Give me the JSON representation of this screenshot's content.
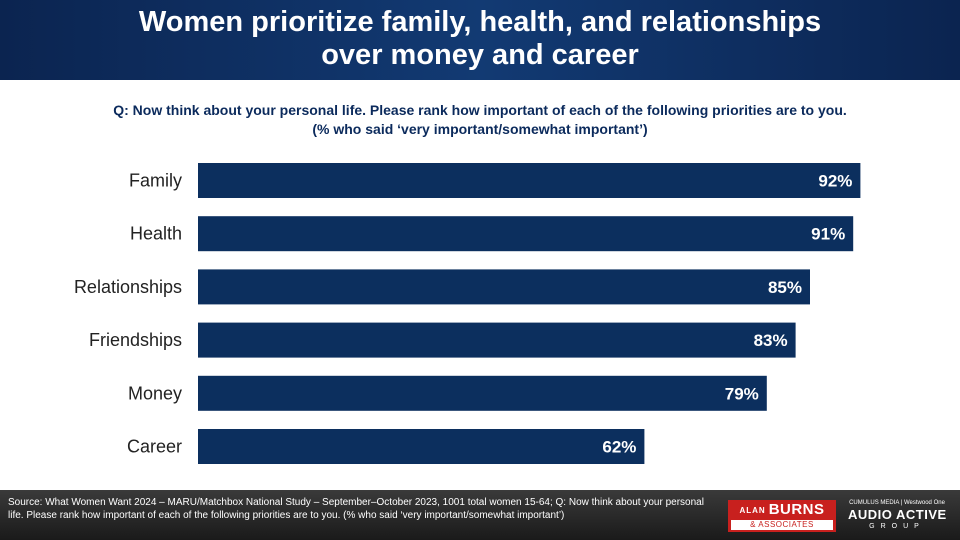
{
  "title": {
    "line1": "Women prioritize family, health, and relationships",
    "line2": "over money and career"
  },
  "question": {
    "line1": "Q: Now think about your personal life. Please rank how important of each of the following priorities are to you.",
    "line2": "(% who said ‘very important/somewhat important’)"
  },
  "chart_data": {
    "type": "bar",
    "orientation": "horizontal",
    "categories": [
      "Family",
      "Health",
      "Relationships",
      "Friendships",
      "Money",
      "Career"
    ],
    "values": [
      92,
      91,
      85,
      83,
      79,
      62
    ],
    "value_labels": [
      "92%",
      "91%",
      "85%",
      "83%",
      "79%",
      "62%"
    ],
    "xlim": [
      0,
      100
    ],
    "bar_color": "#0c2f5e",
    "label_color": "#ffffff",
    "grid": false
  },
  "footer": {
    "source": "Source: What Women Want 2024 – MARU/Matchbox National Study – September–October 2023, 1001 total women 15-64; Q: Now think about your personal life. Please rank how important of each of the following priorities are to you. (% who said ‘very important/somewhat important’)",
    "logo_burns_small": "ALAN",
    "logo_burns_name": "BURNS",
    "logo_burns_sub": "& ASSOCIATES",
    "logo_aag_partners": "CUMULUS MEDIA | Westwood One",
    "logo_aag_main": "AUDIO ACTIVE",
    "logo_aag_group": "GROUP"
  },
  "colors": {
    "header": "#0b2450",
    "question": "#0b2a5c",
    "bar": "#0c2f5e",
    "footer": "#222222"
  }
}
